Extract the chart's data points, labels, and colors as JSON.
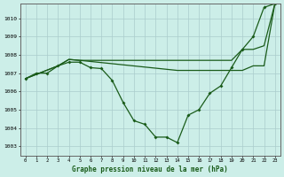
{
  "title": "Graphe pression niveau de la mer (hPa)",
  "bg_color": "#cceee8",
  "grid_color": "#aacccc",
  "line_color": "#1a5c1a",
  "line1_x": [
    0,
    1,
    2,
    3,
    4,
    5,
    6,
    7,
    8,
    9,
    10,
    11,
    12,
    13,
    14,
    15,
    16,
    17,
    18,
    19,
    20,
    21,
    22,
    23
  ],
  "line1_y": [
    1006.7,
    1007.0,
    1007.0,
    1007.4,
    1007.6,
    1007.6,
    1007.3,
    1007.25,
    1006.6,
    1005.4,
    1004.4,
    1004.2,
    1003.5,
    1003.5,
    1003.2,
    1004.7,
    1005.0,
    1005.9,
    1006.3,
    1007.3,
    1008.3,
    1009.0,
    1010.6,
    1010.8
  ],
  "line2_x": [
    0,
    3,
    4,
    5,
    14,
    19,
    20,
    21,
    22,
    23
  ],
  "line2_y": [
    1006.7,
    1007.4,
    1007.75,
    1007.7,
    1007.7,
    1007.7,
    1008.3,
    1008.3,
    1008.5,
    1010.8
  ],
  "line3_x": [
    0,
    3,
    4,
    5,
    14,
    19,
    20,
    21,
    22,
    23
  ],
  "line3_y": [
    1006.7,
    1007.4,
    1007.75,
    1007.7,
    1007.15,
    1007.15,
    1007.15,
    1007.4,
    1007.4,
    1010.8
  ],
  "x_ticks": [
    0,
    1,
    2,
    3,
    4,
    5,
    6,
    7,
    8,
    9,
    10,
    11,
    12,
    13,
    14,
    15,
    16,
    17,
    18,
    19,
    20,
    21,
    22,
    23
  ],
  "x_tick_labels": [
    "0",
    "1",
    "2",
    "3",
    "4",
    "5",
    "6",
    "7",
    "8",
    "9",
    "10",
    "11",
    "12",
    "13",
    "14",
    "15",
    "16",
    "17",
    "18",
    "19",
    "20",
    "21",
    "22",
    "23"
  ],
  "ylim": [
    1002.5,
    1010.8
  ],
  "y_ticks": [
    1003,
    1004,
    1005,
    1006,
    1007,
    1008,
    1009,
    1010
  ]
}
